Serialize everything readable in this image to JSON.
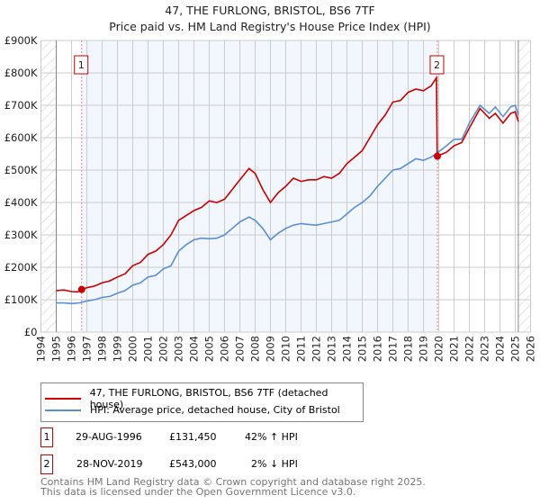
{
  "chart_data": {
    "type": "line",
    "title": "47, THE FURLONG, BRISTOL, BS6 7TF",
    "subtitle": "Price paid vs. HM Land Registry's House Price Index (HPI)",
    "xlim": [
      1994,
      2026
    ],
    "ylim": [
      0,
      900000
    ],
    "x_ticks": [
      "1994",
      "1995",
      "1996",
      "1997",
      "1998",
      "1999",
      "2000",
      "2001",
      "2002",
      "2003",
      "2004",
      "2005",
      "2006",
      "2007",
      "2008",
      "2009",
      "2010",
      "2011",
      "2012",
      "2013",
      "2014",
      "2015",
      "2016",
      "2017",
      "2018",
      "2019",
      "2020",
      "2021",
      "2022",
      "2023",
      "2024",
      "2025",
      "2026"
    ],
    "y_ticks": [
      {
        "v": 0,
        "label": "£0"
      },
      {
        "v": 100000,
        "label": "£100K"
      },
      {
        "v": 200000,
        "label": "£200K"
      },
      {
        "v": 300000,
        "label": "£300K"
      },
      {
        "v": 400000,
        "label": "£400K"
      },
      {
        "v": 500000,
        "label": "£500K"
      },
      {
        "v": 600000,
        "label": "£600K"
      },
      {
        "v": 700000,
        "label": "£700K"
      },
      {
        "v": 800000,
        "label": "£800K"
      },
      {
        "v": 900000,
        "label": "£900K"
      }
    ],
    "data_range": [
      1995,
      2025.2
    ],
    "series": [
      {
        "name": "47, THE FURLONG, BRISTOL, BS6 7TF (detached house)",
        "color": "#cc0000",
        "x": [
          1995,
          1995.5,
          1996,
          1996.4,
          1996.67,
          1997,
          1997.5,
          1998,
          1998.5,
          1999,
          1999.5,
          2000,
          2000.5,
          2001,
          2001.5,
          2002,
          2002.5,
          2003,
          2003.5,
          2004,
          2004.5,
          2005,
          2005.5,
          2006,
          2006.5,
          2007,
          2007.6,
          2008,
          2008.5,
          2009,
          2009.5,
          2010,
          2010.5,
          2011,
          2011.5,
          2012,
          2012.5,
          2013,
          2013.5,
          2014,
          2014.5,
          2015,
          2015.5,
          2016,
          2016.5,
          2017,
          2017.5,
          2018,
          2018.5,
          2019,
          2019.5,
          2019.85,
          2019.9,
          2020.5,
          2021,
          2021.5,
          2022,
          2022.7,
          2023.3,
          2023.7,
          2024.2,
          2024.7,
          2025,
          2025.2
        ],
        "y": [
          128000,
          130000,
          125000,
          124000,
          131450,
          137000,
          142000,
          152000,
          158000,
          170000,
          180000,
          205000,
          215000,
          240000,
          250000,
          270000,
          300000,
          345000,
          360000,
          375000,
          385000,
          405000,
          400000,
          410000,
          440000,
          470000,
          505000,
          490000,
          440000,
          400000,
          430000,
          450000,
          475000,
          465000,
          470000,
          470000,
          480000,
          475000,
          490000,
          520000,
          540000,
          560000,
          600000,
          640000,
          670000,
          710000,
          715000,
          740000,
          750000,
          745000,
          760000,
          785000,
          543000,
          555000,
          575000,
          585000,
          630000,
          690000,
          660000,
          675000,
          645000,
          675000,
          680000,
          650000
        ]
      },
      {
        "name": "HPI: Average price, detached house, City of Bristol",
        "color": "#5b8fd4",
        "x": [
          1995,
          1995.5,
          1996,
          1996.5,
          1997,
          1997.5,
          1998,
          1998.5,
          1999,
          1999.5,
          2000,
          2000.5,
          2001,
          2001.5,
          2002,
          2002.5,
          2003,
          2003.5,
          2004,
          2004.5,
          2005,
          2005.5,
          2006,
          2006.5,
          2007,
          2007.6,
          2008,
          2008.5,
          2009,
          2009.5,
          2010,
          2010.5,
          2011,
          2011.5,
          2012,
          2012.5,
          2013,
          2013.5,
          2014,
          2014.5,
          2015,
          2015.5,
          2016,
          2016.5,
          2017,
          2017.5,
          2018,
          2018.5,
          2019,
          2019.5,
          2019.9,
          2020.5,
          2021,
          2021.5,
          2022,
          2022.7,
          2023.3,
          2023.7,
          2024.2,
          2024.7,
          2025,
          2025.2
        ],
        "y": [
          90000,
          90000,
          88000,
          90000,
          96000,
          100000,
          107000,
          110000,
          120000,
          128000,
          145000,
          152000,
          170000,
          175000,
          195000,
          205000,
          250000,
          270000,
          285000,
          290000,
          288000,
          290000,
          300000,
          320000,
          340000,
          355000,
          345000,
          320000,
          285000,
          305000,
          320000,
          330000,
          335000,
          332000,
          330000,
          335000,
          340000,
          345000,
          365000,
          385000,
          400000,
          420000,
          450000,
          475000,
          500000,
          505000,
          520000,
          535000,
          530000,
          540000,
          553000,
          575000,
          595000,
          595000,
          645000,
          700000,
          675000,
          695000,
          665000,
          695000,
          700000,
          670000
        ]
      }
    ],
    "sales": [
      {
        "label": "1",
        "x": 1996.66,
        "date": "29-AUG-1996",
        "price_value": 131450,
        "price": "£131,450",
        "hpi_text": "42% ↑ HPI"
      },
      {
        "label": "2",
        "x": 2019.91,
        "date": "28-NOV-2019",
        "price_value": 543000,
        "price": "£543,000",
        "hpi_text": "2% ↓ HPI"
      }
    ]
  },
  "footer": {
    "line1": "Contains HM Land Registry data © Crown copyright and database right 2025.",
    "line2": "This data is licensed under the Open Government Licence v3.0."
  }
}
